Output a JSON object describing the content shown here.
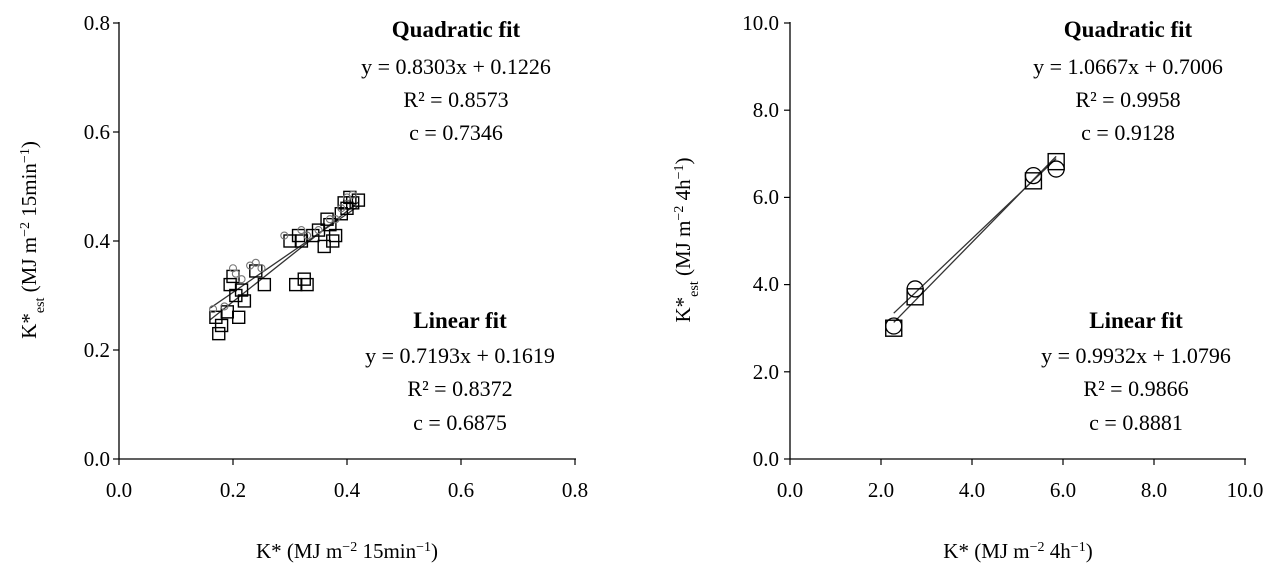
{
  "chart_data": [
    {
      "type": "scatter",
      "xlabel": "K* (MJ m⁻² 15min⁻¹)",
      "ylabel": "K*est (MJ m⁻² 15min⁻¹)",
      "xlim": [
        0,
        0.8
      ],
      "ylim": [
        0,
        0.8
      ],
      "xticks": [
        "0.0",
        "0.2",
        "0.4",
        "0.6",
        "0.8"
      ],
      "yticks": [
        "0.0",
        "0.2",
        "0.4",
        "0.6",
        "0.8"
      ],
      "grid": false,
      "series": [
        {
          "marker": "square",
          "x": [
            0.17,
            0.175,
            0.18,
            0.19,
            0.195,
            0.2,
            0.205,
            0.21,
            0.215,
            0.22,
            0.24,
            0.255,
            0.3,
            0.31,
            0.315,
            0.32,
            0.325,
            0.33,
            0.34,
            0.35,
            0.36,
            0.365,
            0.37,
            0.375,
            0.38,
            0.39,
            0.395,
            0.4,
            0.405,
            0.41,
            0.42
          ],
          "y": [
            0.26,
            0.23,
            0.245,
            0.27,
            0.32,
            0.335,
            0.3,
            0.26,
            0.31,
            0.29,
            0.345,
            0.32,
            0.4,
            0.32,
            0.41,
            0.4,
            0.33,
            0.32,
            0.41,
            0.42,
            0.39,
            0.44,
            0.43,
            0.4,
            0.41,
            0.45,
            0.47,
            0.46,
            0.48,
            0.47,
            0.475
          ]
        },
        {
          "marker": "circle",
          "x": [
            0.165,
            0.185,
            0.2,
            0.205,
            0.215,
            0.23,
            0.24,
            0.25,
            0.29,
            0.32,
            0.33,
            0.35,
            0.37,
            0.38,
            0.39,
            0.4,
            0.41
          ],
          "y": [
            0.275,
            0.28,
            0.35,
            0.34,
            0.33,
            0.355,
            0.36,
            0.35,
            0.41,
            0.42,
            0.41,
            0.42,
            0.44,
            0.44,
            0.46,
            0.48,
            0.485
          ]
        }
      ],
      "fits": [
        {
          "slope": 0.8303,
          "intercept": 0.1226,
          "range": [
            0.16,
            0.42
          ]
        },
        {
          "slope": 0.7193,
          "intercept": 0.1619,
          "range": [
            0.16,
            0.42
          ]
        }
      ],
      "annotations": {
        "quadratic_title": "Quadratic fit",
        "quadratic_eq": "y = 0.8303x + 0.1226",
        "quadratic_r2": "R² = 0.8573",
        "quadratic_c": "c = 0.7346",
        "linear_title": "Linear fit",
        "linear_eq": "y = 0.7193x + 0.1619",
        "linear_r2": "R² = 0.8372",
        "linear_c": "c = 0.6875"
      }
    },
    {
      "type": "scatter",
      "xlabel": "K* (MJ m⁻² 4h⁻¹)",
      "ylabel": "K*est (MJ m⁻² 4h⁻¹)",
      "xlim": [
        0,
        10
      ],
      "ylim": [
        0,
        10
      ],
      "xticks": [
        "0.0",
        "2.0",
        "4.0",
        "6.0",
        "8.0",
        "10.0"
      ],
      "yticks": [
        "0.0",
        "2.0",
        "4.0",
        "6.0",
        "8.0",
        "10.0"
      ],
      "grid": false,
      "series": [
        {
          "marker": "square",
          "x": [
            2.28,
            2.75,
            5.35,
            5.85
          ],
          "y": [
            3.0,
            3.72,
            6.38,
            6.82
          ]
        },
        {
          "marker": "circle",
          "x": [
            2.28,
            2.75,
            5.35,
            5.85
          ],
          "y": [
            3.05,
            3.9,
            6.5,
            6.65
          ]
        }
      ],
      "fits": [
        {
          "slope": 1.0667,
          "intercept": 0.7006,
          "range": [
            2.28,
            5.85
          ]
        },
        {
          "slope": 0.9932,
          "intercept": 1.0796,
          "range": [
            2.28,
            5.85
          ]
        }
      ],
      "annotations": {
        "quadratic_title": "Quadratic fit",
        "quadratic_eq": "y = 1.0667x + 0.7006",
        "quadratic_r2": "R² = 0.9958",
        "quadratic_c": "c = 0.9128",
        "linear_title": "Linear fit",
        "linear_eq": "y = 0.9932x + 1.0796",
        "linear_r2": "R² = 0.9866",
        "linear_c": "c = 0.8881"
      }
    }
  ]
}
